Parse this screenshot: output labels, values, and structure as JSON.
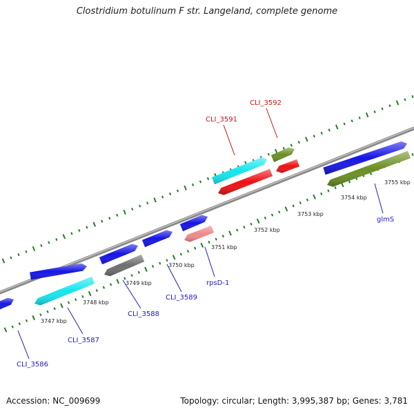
{
  "title": "Clostridium botulinum F str. Langeland, complete genome",
  "footer": {
    "accession": "Accession: NC_009699",
    "summary": "Topology: circular; Length: 3,995,387 bp; Genes: 3,781"
  },
  "colors": {
    "backbone": "#8a8a8a",
    "ticks": "#1e7d1e",
    "label_blue": "#1a1acc",
    "label_red": "#cc1111",
    "blue": "#1515e6",
    "cyan": "#14e6f0",
    "red": "#ee1111",
    "olive": "#6b8e23",
    "gray": "#6e6e6e",
    "pink": "#f08888"
  },
  "scale_labels": [
    "3747 kbp",
    "3748 kbp",
    "3749 kbp",
    "3750 kbp",
    "3751 kbp",
    "3752 kbp",
    "3753 kbp",
    "3754 kbp",
    "3755 kbp"
  ],
  "features": [
    {
      "name": "CLI_3586",
      "strand": "+",
      "color": "blue"
    },
    {
      "name": "CLI_3587",
      "strand": "+",
      "color": "blue"
    },
    {
      "name": "",
      "strand": "-",
      "color": "cyan"
    },
    {
      "name": "CLI_3588",
      "strand": "+",
      "color": "blue"
    },
    {
      "name": "",
      "strand": "-",
      "color": "gray"
    },
    {
      "name": "CLI_3589",
      "strand": "+",
      "color": "blue"
    },
    {
      "name": "",
      "strand": "+",
      "color": "blue"
    },
    {
      "name": "rpsD-1",
      "strand": "-",
      "color": "pink"
    },
    {
      "name": "CLI_3591",
      "strand": "+",
      "color": "cyan"
    },
    {
      "name": "",
      "strand": "-",
      "color": "red"
    },
    {
      "name": "CLI_3592",
      "strand": "+",
      "color": "olive"
    },
    {
      "name": "",
      "strand": "-",
      "color": "red"
    },
    {
      "name": "glmS",
      "strand": "+",
      "color": "blue"
    },
    {
      "name": "",
      "strand": "-",
      "color": "olive"
    }
  ]
}
